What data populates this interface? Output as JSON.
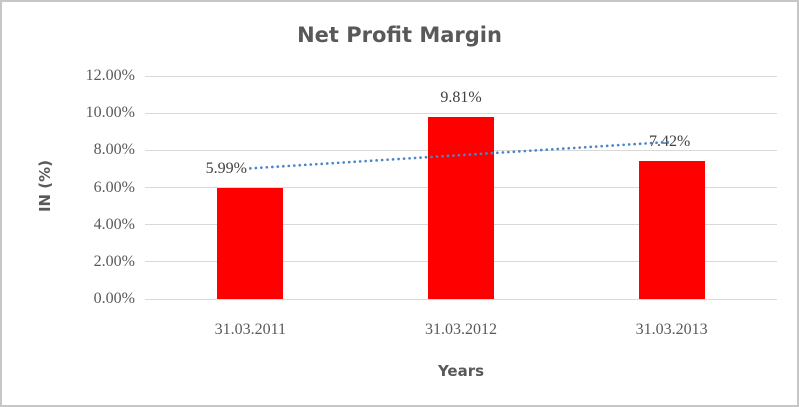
{
  "frame": {
    "background": "#ffffff",
    "border_color": "#c6c6c6"
  },
  "chart_data": {
    "type": "bar",
    "title": "Net Profit Margin",
    "xlabel": "Years",
    "ylabel": "IN (%)",
    "categories": [
      "31.03.2011",
      "31.03.2012",
      "31.03.2013"
    ],
    "series": [
      {
        "name": "Net Profit Margin",
        "values": [
          5.99,
          9.81,
          7.42
        ]
      }
    ],
    "data_labels": [
      "5.99%",
      "9.81%",
      "7.42%"
    ],
    "y_ticks": [
      "12.00%",
      "10.00%",
      "8.00%",
      "6.00%",
      "4.00%",
      "2.00%",
      "0.00%"
    ],
    "y_tick_values": [
      12,
      10,
      8,
      6,
      4,
      2,
      0
    ],
    "ylim": [
      0,
      12
    ],
    "grid": true,
    "legend_position": "none",
    "bar_color": "#ff0000",
    "gridline_color": "#d9d9d9",
    "text_color": "#595959",
    "data_label_color": "#404040",
    "trendline": {
      "type": "linear",
      "style": "dotted",
      "color": "#4a86c8",
      "start_value": 7.03,
      "end_value": 8.46
    }
  }
}
